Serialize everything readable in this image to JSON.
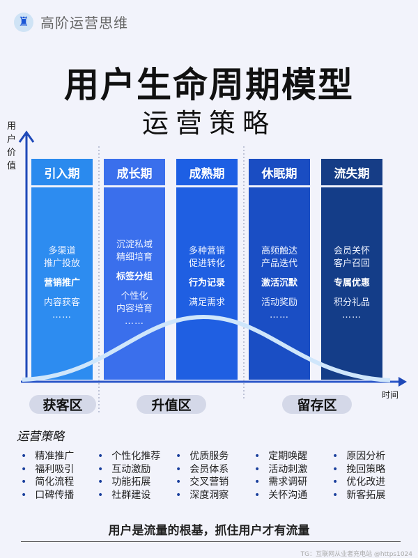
{
  "brand": {
    "name": "高阶运营思维",
    "icon": "chess-rook-icon"
  },
  "title": "用户生命周期模型",
  "subtitle": "运营策略",
  "axes": {
    "y_label": "用户价值",
    "x_label": "时间"
  },
  "colors": {
    "stage1": "#2d8cf0",
    "stage2": "#3a6fec",
    "stage3": "#1f5fe2",
    "stage4": "#1a4ec4",
    "stage5": "#143d88"
  },
  "stages": [
    {
      "name": "引入期",
      "lines1": [
        "多渠道",
        "推广投放"
      ],
      "bold": "营销推广",
      "lines2": [
        "内容获客"
      ],
      "dots": "……"
    },
    {
      "name": "成长期",
      "lines1": [
        "沉淀私域",
        "精细培育"
      ],
      "bold": "标签分组",
      "lines2": [
        "个性化",
        "内容培育"
      ],
      "dots": "……"
    },
    {
      "name": "成熟期",
      "lines1": [
        "多种营销",
        "促进转化"
      ],
      "bold": "行为记录",
      "lines2": [
        "满足需求"
      ],
      "dots": "……"
    },
    {
      "name": "休眠期",
      "lines1": [
        "高频触达",
        "产品迭代"
      ],
      "bold": "激活沉默",
      "lines2": [
        "活动奖励"
      ],
      "dots": "……"
    },
    {
      "name": "流失期",
      "lines1": [
        "会员关怀",
        "客户召回"
      ],
      "bold": "专属优惠",
      "lines2": [
        "积分礼品"
      ],
      "dots": "……"
    }
  ],
  "zones": [
    "获客区",
    "升值区",
    "留存区"
  ],
  "strategy": {
    "title": "运营策略",
    "columns": [
      [
        "精准推广",
        "福利吸引",
        "简化流程",
        "口碑传播"
      ],
      [
        "个性化推荐",
        "互动激励",
        "功能拓展",
        "社群建设"
      ],
      [
        "优质服务",
        "会员体系",
        "交叉营销",
        "深度洞察"
      ],
      [
        "定期唤醒",
        "活动刺激",
        "需求调研",
        "关怀沟通"
      ],
      [
        "原因分析",
        "挽回策略",
        "优化改进",
        "新客拓展"
      ]
    ]
  },
  "footer": "用户是流量的根基，抓住用户才有流量",
  "watermark": "TG：互联网从业者充电站 @https1024"
}
